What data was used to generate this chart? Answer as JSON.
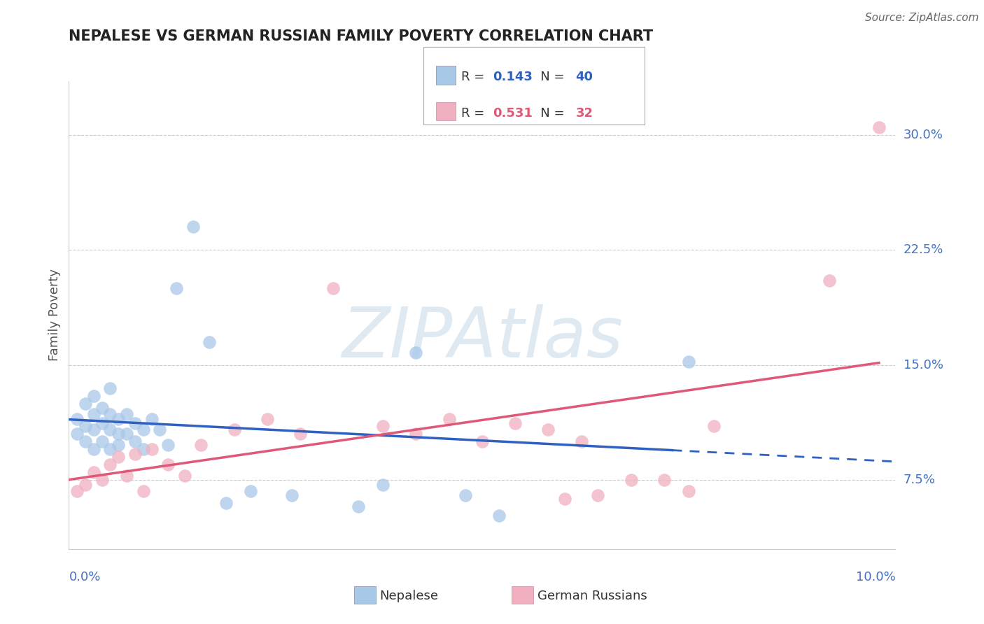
{
  "title": "NEPALESE VS GERMAN RUSSIAN FAMILY POVERTY CORRELATION CHART",
  "source": "Source: ZipAtlas.com",
  "ylabel": "Family Poverty",
  "ylabel_ticks": [
    "7.5%",
    "15.0%",
    "22.5%",
    "30.0%"
  ],
  "ylabel_tick_vals": [
    0.075,
    0.15,
    0.225,
    0.3
  ],
  "xtick_labels": [
    "0.0%",
    "10.0%"
  ],
  "xlim": [
    0.0,
    0.1
  ],
  "ylim": [
    0.03,
    0.335
  ],
  "nepalese_R": "0.143",
  "nepalese_N": "40",
  "german_russian_R": "0.531",
  "german_russian_N": "32",
  "nepalese_color": "#a8c8e8",
  "german_russian_color": "#f0b0c0",
  "nepalese_line_color": "#3060c0",
  "german_russian_line_color": "#e05878",
  "nepalese_x": [
    0.001,
    0.001,
    0.002,
    0.002,
    0.002,
    0.003,
    0.003,
    0.003,
    0.003,
    0.004,
    0.004,
    0.004,
    0.005,
    0.005,
    0.005,
    0.005,
    0.006,
    0.006,
    0.006,
    0.007,
    0.007,
    0.008,
    0.008,
    0.009,
    0.009,
    0.01,
    0.011,
    0.012,
    0.013,
    0.015,
    0.017,
    0.019,
    0.022,
    0.027,
    0.035,
    0.038,
    0.042,
    0.048,
    0.052,
    0.075
  ],
  "nepalese_y": [
    0.105,
    0.115,
    0.1,
    0.11,
    0.125,
    0.095,
    0.108,
    0.118,
    0.13,
    0.1,
    0.112,
    0.122,
    0.095,
    0.108,
    0.118,
    0.135,
    0.105,
    0.115,
    0.098,
    0.105,
    0.118,
    0.1,
    0.112,
    0.095,
    0.108,
    0.115,
    0.108,
    0.098,
    0.2,
    0.24,
    0.165,
    0.06,
    0.068,
    0.065,
    0.058,
    0.072,
    0.158,
    0.065,
    0.052,
    0.152
  ],
  "german_russian_x": [
    0.001,
    0.002,
    0.003,
    0.004,
    0.005,
    0.006,
    0.007,
    0.008,
    0.009,
    0.01,
    0.012,
    0.014,
    0.016,
    0.02,
    0.024,
    0.028,
    0.032,
    0.038,
    0.042,
    0.046,
    0.05,
    0.054,
    0.058,
    0.06,
    0.062,
    0.064,
    0.068,
    0.072,
    0.075,
    0.078,
    0.092,
    0.098
  ],
  "german_russian_y": [
    0.068,
    0.072,
    0.08,
    0.075,
    0.085,
    0.09,
    0.078,
    0.092,
    0.068,
    0.095,
    0.085,
    0.078,
    0.098,
    0.108,
    0.115,
    0.105,
    0.2,
    0.11,
    0.105,
    0.115,
    0.1,
    0.112,
    0.108,
    0.063,
    0.1,
    0.065,
    0.075,
    0.075,
    0.068,
    0.11,
    0.205,
    0.305
  ],
  "watermark": "ZIPAtlas",
  "grid_color": "#cccccc",
  "tick_label_color": "#4472c4",
  "background_color": "#ffffff"
}
